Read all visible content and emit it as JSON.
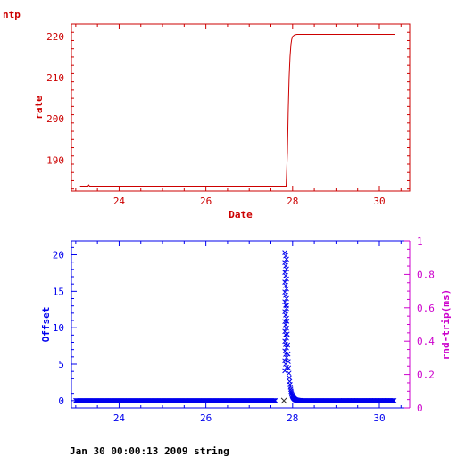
{
  "chart_data": [
    {
      "type": "line",
      "title": "ntp",
      "xlabel": "Date",
      "ylabel": "rate",
      "color": "#cc0000",
      "xlim": [
        22.9,
        30.7
      ],
      "ylim": [
        182.5,
        223
      ],
      "x_ticks": [
        24,
        26,
        28,
        30
      ],
      "y_ticks": [
        190,
        200,
        210,
        220
      ],
      "grid": false,
      "series": [
        {
          "x": [
            23.1,
            23.28,
            23.3,
            23.32,
            27.85,
            27.88,
            27.9,
            27.92,
            27.94,
            27.96,
            27.98,
            28.0,
            28.05,
            28.1,
            28.2,
            30.35
          ],
          "y": [
            183.7,
            183.7,
            184.0,
            183.7,
            183.7,
            192.0,
            202.0,
            210.0,
            215.0,
            218.0,
            219.3,
            220.0,
            220.4,
            220.5,
            220.5,
            220.5
          ]
        }
      ]
    },
    {
      "type": "scatter",
      "xlabel": "",
      "ylabel": "Offset",
      "y2label": "rnd-trip(ms)",
      "offset_color": "#0000ee",
      "rtt_color": "#cc00cc",
      "xlim": [
        22.9,
        30.7
      ],
      "ylim": [
        -1,
        21.9
      ],
      "y2lim": [
        0,
        1
      ],
      "x_ticks": [
        24,
        26,
        28,
        30
      ],
      "y_ticks": [
        0,
        5,
        10,
        15,
        20
      ],
      "y2_ticks": [
        0,
        0.2,
        0.4,
        0.6,
        0.8,
        1
      ],
      "grid": false,
      "series": [
        {
          "marker": "x",
          "spike_x": 27.8,
          "baseline_start": 23.0,
          "baseline_end_before_gap": 27.6,
          "baseline_end": 30.35,
          "peak": 20.3,
          "peak_x": 27.84,
          "decay_end_x": 28.2
        }
      ],
      "outlier": {
        "x": 27.8,
        "y": 0
      }
    }
  ],
  "footer": "Jan 30 00:00:13 2009 string"
}
